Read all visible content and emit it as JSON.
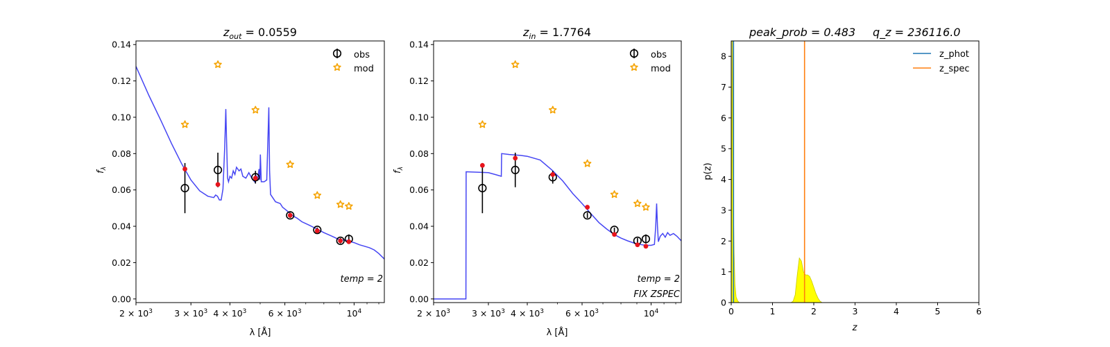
{
  "figure": {
    "background": "#ffffff"
  },
  "colors": {
    "sed_line": "#3b3bf2",
    "obs_marker": "#000000",
    "mod_marker": "#f5a300",
    "model_flux_dot": "#e8141c",
    "z_phot_line": "#1f77b4",
    "z_spec_line": "#ff7f0e",
    "pz_fill": "#ffff00",
    "pz_fill_edge": "#c8c800"
  },
  "chart_data": [
    {
      "type": "scatter",
      "panel": "sed_zout",
      "title_prefix": "z",
      "title_sub": "out",
      "title_suffix": " = 0.0559",
      "xlabel": "λ [Å]",
      "ylabel": "f",
      "ylabel_sub": "λ",
      "xscale": "log",
      "xlim": [
        2000,
        12500
      ],
      "ylim": [
        -0.002,
        0.142
      ],
      "xticks": [
        {
          "value": 2000,
          "base": "2 × 10",
          "exp": "3"
        },
        {
          "value": 3000,
          "base": "3 × 10",
          "exp": "3"
        },
        {
          "value": 4000,
          "base": "4 × 10",
          "exp": "3"
        },
        {
          "value": 6000,
          "base": "6 × 10",
          "exp": "3"
        },
        {
          "value": 10000,
          "base": "10",
          "exp": "4"
        }
      ],
      "yticks": [
        {
          "value": 0.0,
          "label": "0.00"
        },
        {
          "value": 0.02,
          "label": "0.02"
        },
        {
          "value": 0.04,
          "label": "0.04"
        },
        {
          "value": 0.06,
          "label": "0.06"
        },
        {
          "value": 0.08,
          "label": "0.08"
        },
        {
          "value": 0.1,
          "label": "0.10"
        },
        {
          "value": 0.12,
          "label": "0.12"
        },
        {
          "value": 0.14,
          "label": "0.14"
        }
      ],
      "legend": {
        "placement": "top-right",
        "obs_label": "obs",
        "mod_label": "mod"
      },
      "annotations": [
        "temp = 2"
      ],
      "obs": [
        {
          "x": 2870,
          "y": 0.061,
          "yerr": 0.0138
        },
        {
          "x": 3660,
          "y": 0.071,
          "yerr": 0.0095
        },
        {
          "x": 4830,
          "y": 0.067,
          "yerr": 0.0035
        },
        {
          "x": 6240,
          "y": 0.046,
          "yerr": 0.0015
        },
        {
          "x": 7620,
          "y": 0.038,
          "yerr": 0.0013
        },
        {
          "x": 9040,
          "y": 0.032,
          "yerr": 0.0015
        },
        {
          "x": 9620,
          "y": 0.033,
          "yerr": 0.0025
        }
      ],
      "mod": [
        {
          "x": 2870,
          "y": 0.096
        },
        {
          "x": 3660,
          "y": 0.129
        },
        {
          "x": 4830,
          "y": 0.104
        },
        {
          "x": 6240,
          "y": 0.074
        },
        {
          "x": 7620,
          "y": 0.057
        },
        {
          "x": 9040,
          "y": 0.052
        },
        {
          "x": 9620,
          "y": 0.051
        }
      ],
      "model_flux": [
        {
          "x": 2870,
          "y": 0.0715
        },
        {
          "x": 3660,
          "y": 0.063
        },
        {
          "x": 4830,
          "y": 0.0665
        },
        {
          "x": 6240,
          "y": 0.046
        },
        {
          "x": 7620,
          "y": 0.0375
        },
        {
          "x": 9040,
          "y": 0.032
        },
        {
          "x": 9620,
          "y": 0.0315
        }
      ],
      "sed": [
        [
          2000,
          0.128
        ],
        [
          2200,
          0.112
        ],
        [
          2400,
          0.0985
        ],
        [
          2600,
          0.0855
        ],
        [
          2800,
          0.0745
        ],
        [
          3000,
          0.0655
        ],
        [
          3200,
          0.0595
        ],
        [
          3400,
          0.0565
        ],
        [
          3550,
          0.0558
        ],
        [
          3600,
          0.0572
        ],
        [
          3650,
          0.0565
        ],
        [
          3700,
          0.0545
        ],
        [
          3750,
          0.0545
        ],
        [
          3800,
          0.0605
        ],
        [
          3850,
          0.0835
        ],
        [
          3880,
          0.1045
        ],
        [
          3900,
          0.0885
        ],
        [
          3930,
          0.0665
        ],
        [
          3960,
          0.0645
        ],
        [
          4000,
          0.0675
        ],
        [
          4050,
          0.0665
        ],
        [
          4100,
          0.0705
        ],
        [
          4150,
          0.0685
        ],
        [
          4200,
          0.0725
        ],
        [
          4280,
          0.0705
        ],
        [
          4340,
          0.0715
        ],
        [
          4400,
          0.0675
        ],
        [
          4500,
          0.0665
        ],
        [
          4600,
          0.0695
        ],
        [
          4700,
          0.0665
        ],
        [
          4800,
          0.0645
        ],
        [
          4861,
          0.0675
        ],
        [
          4900,
          0.0655
        ],
        [
          4959,
          0.0715
        ],
        [
          4990,
          0.0655
        ],
        [
          5007,
          0.0795
        ],
        [
          5040,
          0.0645
        ],
        [
          5150,
          0.0645
        ],
        [
          5250,
          0.0655
        ],
        [
          5300,
          0.0905
        ],
        [
          5330,
          0.1055
        ],
        [
          5360,
          0.0705
        ],
        [
          5400,
          0.0575
        ],
        [
          5600,
          0.0535
        ],
        [
          5800,
          0.0525
        ],
        [
          5900,
          0.0505
        ],
        [
          6000,
          0.0495
        ],
        [
          6200,
          0.0475
        ],
        [
          6400,
          0.0455
        ],
        [
          6563,
          0.0445
        ],
        [
          6800,
          0.0425
        ],
        [
          7200,
          0.0405
        ],
        [
          7600,
          0.0385
        ],
        [
          8000,
          0.0365
        ],
        [
          8500,
          0.0345
        ],
        [
          9000,
          0.0325
        ],
        [
          9300,
          0.0325
        ],
        [
          9500,
          0.0322
        ],
        [
          9600,
          0.0318
        ],
        [
          10000,
          0.031
        ],
        [
          10400,
          0.0298
        ],
        [
          10800,
          0.029
        ],
        [
          11200,
          0.0282
        ],
        [
          11600,
          0.027
        ],
        [
          12000,
          0.025
        ],
        [
          12500,
          0.022
        ]
      ]
    },
    {
      "type": "scatter",
      "panel": "sed_zin",
      "title_prefix": "z",
      "title_sub": "in",
      "title_suffix": " = 1.7764",
      "xlabel": "λ [Å]",
      "ylabel": "f",
      "ylabel_sub": "λ",
      "xscale": "log",
      "xlim": [
        2000,
        12500
      ],
      "ylim": [
        -0.002,
        0.142
      ],
      "xticks": [
        {
          "value": 2000,
          "base": "2 × 10",
          "exp": "3"
        },
        {
          "value": 3000,
          "base": "3 × 10",
          "exp": "3"
        },
        {
          "value": 4000,
          "base": "4 × 10",
          "exp": "3"
        },
        {
          "value": 6000,
          "base": "6 × 10",
          "exp": "3"
        },
        {
          "value": 10000,
          "base": "10",
          "exp": "4"
        }
      ],
      "yticks": [
        {
          "value": 0.0,
          "label": "0.00"
        },
        {
          "value": 0.02,
          "label": "0.02"
        },
        {
          "value": 0.04,
          "label": "0.04"
        },
        {
          "value": 0.06,
          "label": "0.06"
        },
        {
          "value": 0.08,
          "label": "0.08"
        },
        {
          "value": 0.1,
          "label": "0.10"
        },
        {
          "value": 0.12,
          "label": "0.12"
        },
        {
          "value": 0.14,
          "label": "0.14"
        }
      ],
      "legend": {
        "placement": "top-right",
        "obs_label": "obs",
        "mod_label": "mod"
      },
      "annotations": [
        "temp = 2",
        "FIX ZSPEC"
      ],
      "obs": [
        {
          "x": 2870,
          "y": 0.061,
          "yerr": 0.0138
        },
        {
          "x": 3660,
          "y": 0.071,
          "yerr": 0.0095
        },
        {
          "x": 4830,
          "y": 0.067,
          "yerr": 0.0035
        },
        {
          "x": 6240,
          "y": 0.046,
          "yerr": 0.0015
        },
        {
          "x": 7620,
          "y": 0.038,
          "yerr": 0.0013
        },
        {
          "x": 9040,
          "y": 0.032,
          "yerr": 0.0015
        },
        {
          "x": 9620,
          "y": 0.033,
          "yerr": 0.0025
        }
      ],
      "mod": [
        {
          "x": 2870,
          "y": 0.096
        },
        {
          "x": 3660,
          "y": 0.129
        },
        {
          "x": 4830,
          "y": 0.104
        },
        {
          "x": 6240,
          "y": 0.0745
        },
        {
          "x": 7620,
          "y": 0.0575
        },
        {
          "x": 9040,
          "y": 0.0525
        },
        {
          "x": 9620,
          "y": 0.0505
        }
      ],
      "model_flux": [
        {
          "x": 2870,
          "y": 0.0735
        },
        {
          "x": 3660,
          "y": 0.0775
        },
        {
          "x": 4830,
          "y": 0.0685
        },
        {
          "x": 6240,
          "y": 0.0505
        },
        {
          "x": 7620,
          "y": 0.0355
        },
        {
          "x": 9040,
          "y": 0.0298
        },
        {
          "x": 9620,
          "y": 0.029
        }
      ],
      "sed": [
        [
          2000,
          0.0
        ],
        [
          2540,
          0.0
        ],
        [
          2545,
          0.07
        ],
        [
          3000,
          0.0695
        ],
        [
          3150,
          0.0685
        ],
        [
          3300,
          0.0675
        ],
        [
          3310,
          0.08
        ],
        [
          3500,
          0.0795
        ],
        [
          3800,
          0.079
        ],
        [
          4000,
          0.0785
        ],
        [
          4400,
          0.0765
        ],
        [
          4800,
          0.071
        ],
        [
          5200,
          0.065
        ],
        [
          5600,
          0.058
        ],
        [
          6000,
          0.0525
        ],
        [
          6400,
          0.047
        ],
        [
          6800,
          0.042
        ],
        [
          7200,
          0.0385
        ],
        [
          7600,
          0.0355
        ],
        [
          8000,
          0.0335
        ],
        [
          8400,
          0.032
        ],
        [
          8800,
          0.0308
        ],
        [
          9200,
          0.03
        ],
        [
          9600,
          0.0295
        ],
        [
          10000,
          0.0295
        ],
        [
          10250,
          0.03
        ],
        [
          10350,
          0.04
        ],
        [
          10420,
          0.0525
        ],
        [
          10480,
          0.04
        ],
        [
          10550,
          0.0315
        ],
        [
          10700,
          0.0345
        ],
        [
          10900,
          0.036
        ],
        [
          11100,
          0.034
        ],
        [
          11300,
          0.0365
        ],
        [
          11500,
          0.035
        ],
        [
          11800,
          0.036
        ],
        [
          12100,
          0.0345
        ],
        [
          12500,
          0.032
        ]
      ]
    },
    {
      "type": "area",
      "panel": "pz",
      "title_left": "peak_prob = 0.483",
      "title_right": "q_z = 236116.0",
      "xlabel": "z",
      "ylabel": "p(z)",
      "xlim": [
        0,
        6
      ],
      "ylim": [
        0,
        8.5
      ],
      "xticks": [
        {
          "value": 0,
          "label": "0"
        },
        {
          "value": 1,
          "label": "1"
        },
        {
          "value": 2,
          "label": "2"
        },
        {
          "value": 3,
          "label": "3"
        },
        {
          "value": 4,
          "label": "4"
        },
        {
          "value": 5,
          "label": "5"
        },
        {
          "value": 6,
          "label": "6"
        }
      ],
      "yticks": [
        {
          "value": 0,
          "label": "0"
        },
        {
          "value": 1,
          "label": "1"
        },
        {
          "value": 2,
          "label": "2"
        },
        {
          "value": 3,
          "label": "3"
        },
        {
          "value": 4,
          "label": "4"
        },
        {
          "value": 5,
          "label": "5"
        },
        {
          "value": 6,
          "label": "6"
        },
        {
          "value": 7,
          "label": "7"
        },
        {
          "value": 8,
          "label": "8"
        }
      ],
      "legend": {
        "placement": "top-right",
        "z_phot_label": "z_phot",
        "z_spec_label": "z_spec"
      },
      "z_phot": 0.0559,
      "z_spec": 1.7764,
      "pz": [
        [
          0.0,
          0.0
        ],
        [
          0.01,
          3.5
        ],
        [
          0.02,
          8.5
        ],
        [
          0.03,
          8.5
        ],
        [
          0.04,
          6.0
        ],
        [
          0.05,
          3.5
        ],
        [
          0.07,
          1.6
        ],
        [
          0.09,
          0.6
        ],
        [
          0.12,
          0.18
        ],
        [
          0.16,
          0.05
        ],
        [
          0.2,
          0.0
        ],
        [
          1.45,
          0.0
        ],
        [
          1.5,
          0.05
        ],
        [
          1.55,
          0.25
        ],
        [
          1.6,
          0.9
        ],
        [
          1.65,
          1.45
        ],
        [
          1.7,
          1.35
        ],
        [
          1.75,
          1.0
        ],
        [
          1.8,
          0.9
        ],
        [
          1.85,
          0.9
        ],
        [
          1.9,
          0.85
        ],
        [
          1.95,
          0.7
        ],
        [
          2.0,
          0.5
        ],
        [
          2.05,
          0.3
        ],
        [
          2.1,
          0.15
        ],
        [
          2.15,
          0.05
        ],
        [
          2.2,
          0.0
        ],
        [
          5.0,
          0.0
        ]
      ]
    }
  ]
}
